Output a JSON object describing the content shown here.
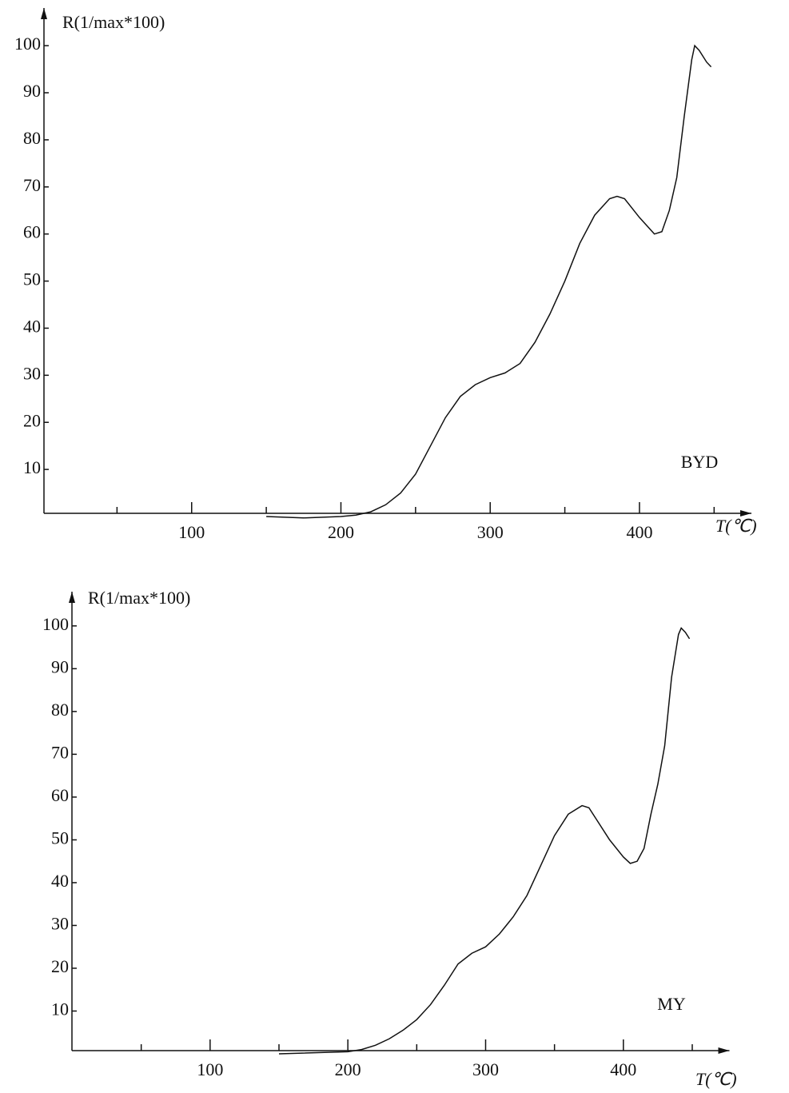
{
  "chart_data": [
    {
      "type": "line",
      "y_label": "R(1/max*100)",
      "x_label": "T(℃)",
      "annotation": "BYD",
      "x": [
        150,
        175,
        200,
        210,
        220,
        230,
        240,
        250,
        260,
        270,
        280,
        290,
        300,
        310,
        320,
        330,
        340,
        350,
        360,
        370,
        380,
        385,
        390,
        400,
        410,
        415,
        420,
        425,
        430,
        435,
        437,
        440,
        445,
        448
      ],
      "series": [
        {
          "name": "BYD",
          "color": "#111111",
          "values": [
            0,
            -0.3,
            0,
            0.3,
            1,
            2.5,
            5,
            9,
            15,
            21,
            25.5,
            28,
            29.5,
            30.5,
            32.5,
            37,
            43,
            50,
            58,
            64,
            67.5,
            68,
            67.5,
            63.5,
            60,
            60.5,
            65,
            72,
            85,
            97,
            100,
            99,
            96.5,
            95.5
          ]
        }
      ],
      "xlim": [
        0,
        475
      ],
      "ylim": [
        0,
        108
      ],
      "xticks": [
        100,
        200,
        300,
        400
      ],
      "xminorticks": [
        50,
        150,
        250,
        350,
        450
      ],
      "yticks": [
        10,
        20,
        30,
        40,
        50,
        60,
        70,
        80,
        90,
        100
      ]
    },
    {
      "type": "line",
      "y_label": "R(1/max*100)",
      "x_label": "T(℃)",
      "annotation": "MY",
      "x": [
        150,
        200,
        210,
        220,
        230,
        240,
        250,
        260,
        270,
        280,
        290,
        300,
        310,
        320,
        330,
        340,
        350,
        360,
        370,
        375,
        380,
        390,
        400,
        405,
        410,
        415,
        420,
        425,
        430,
        435,
        440,
        442,
        445,
        448
      ],
      "series": [
        {
          "name": "MY",
          "color": "#111111",
          "values": [
            0,
            0.5,
            1,
            2,
            3.5,
            5.5,
            8,
            11.5,
            16,
            21,
            23.5,
            25,
            28,
            32,
            37,
            44,
            51,
            56,
            58,
            57.5,
            55,
            50,
            46,
            44.5,
            45,
            48,
            56,
            63,
            72,
            88,
            98,
            99.5,
            98.5,
            97
          ]
        }
      ],
      "xlim": [
        0,
        477
      ],
      "ylim": [
        0,
        108
      ],
      "xticks": [
        100,
        200,
        300,
        400
      ],
      "xminorticks": [
        50,
        150,
        250,
        350,
        450
      ],
      "yticks": [
        10,
        20,
        30,
        40,
        50,
        60,
        70,
        80,
        90,
        100
      ]
    }
  ]
}
